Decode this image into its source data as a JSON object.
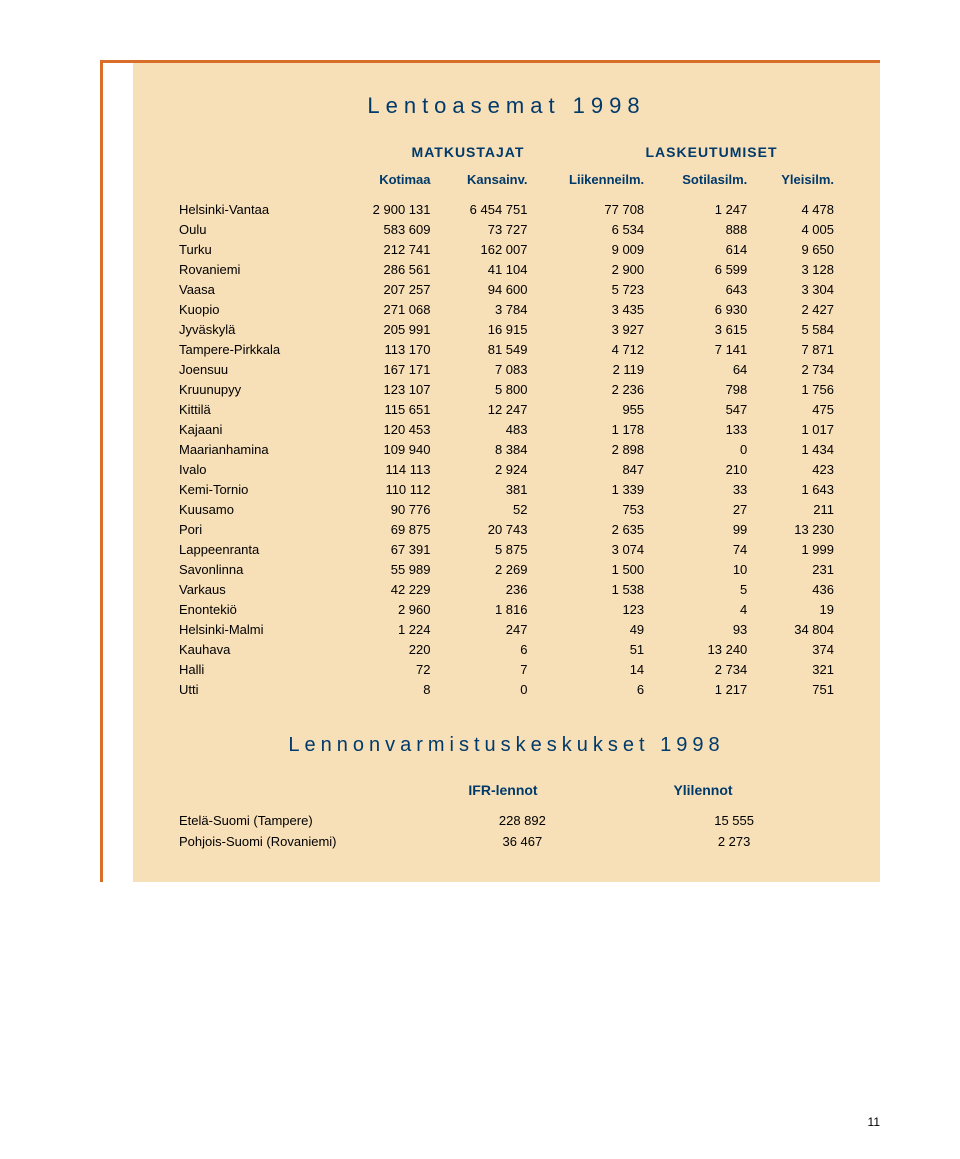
{
  "title1": "Lentoasemat 1998",
  "group_headers": {
    "passengers": "MATKUSTAJAT",
    "landings": "LASKEUTUMISET"
  },
  "columns": [
    "Kotimaa",
    "Kansainv.",
    "Liikenneilm.",
    "Sotilasilm.",
    "Yleisilm."
  ],
  "rows": [
    {
      "n": "Helsinki-Vantaa",
      "v": [
        "2 900 131",
        "6 454 751",
        "77 708",
        "1 247",
        "4 478"
      ]
    },
    {
      "n": "Oulu",
      "v": [
        "583 609",
        "73 727",
        "6 534",
        "888",
        "4 005"
      ]
    },
    {
      "n": "Turku",
      "v": [
        "212 741",
        "162 007",
        "9 009",
        "614",
        "9 650"
      ]
    },
    {
      "n": "Rovaniemi",
      "v": [
        "286 561",
        "41 104",
        "2 900",
        "6 599",
        "3 128"
      ]
    },
    {
      "n": "Vaasa",
      "v": [
        "207 257",
        "94 600",
        "5 723",
        "643",
        "3 304"
      ]
    },
    {
      "n": "Kuopio",
      "v": [
        "271 068",
        "3 784",
        "3 435",
        "6 930",
        "2 427"
      ]
    },
    {
      "n": "Jyväskylä",
      "v": [
        "205 991",
        "16 915",
        "3 927",
        "3 615",
        "5 584"
      ]
    },
    {
      "n": "Tampere-Pirkkala",
      "v": [
        "113 170",
        "81 549",
        "4 712",
        "7 141",
        "7 871"
      ]
    },
    {
      "n": "Joensuu",
      "v": [
        "167 171",
        "7 083",
        "2 119",
        "64",
        "2 734"
      ]
    },
    {
      "n": "Kruunupyy",
      "v": [
        "123 107",
        "5 800",
        "2 236",
        "798",
        "1 756"
      ]
    },
    {
      "n": "Kittilä",
      "v": [
        "115 651",
        "12 247",
        "955",
        "547",
        "475"
      ]
    },
    {
      "n": "Kajaani",
      "v": [
        "120 453",
        "483",
        "1 178",
        "133",
        "1 017"
      ]
    },
    {
      "n": "Maarianhamina",
      "v": [
        "109 940",
        "8 384",
        "2 898",
        "0",
        "1 434"
      ]
    },
    {
      "n": "Ivalo",
      "v": [
        "114 113",
        "2 924",
        "847",
        "210",
        "423"
      ]
    },
    {
      "n": "Kemi-Tornio",
      "v": [
        "110 112",
        "381",
        "1 339",
        "33",
        "1 643"
      ]
    },
    {
      "n": "Kuusamo",
      "v": [
        "90 776",
        "52",
        "753",
        "27",
        "211"
      ]
    },
    {
      "n": "Pori",
      "v": [
        "69 875",
        "20 743",
        "2 635",
        "99",
        "13 230"
      ]
    },
    {
      "n": "Lappeenranta",
      "v": [
        "67 391",
        "5 875",
        "3 074",
        "74",
        "1 999"
      ]
    },
    {
      "n": "Savonlinna",
      "v": [
        "55 989",
        "2 269",
        "1 500",
        "10",
        "231"
      ]
    },
    {
      "n": "Varkaus",
      "v": [
        "42 229",
        "236",
        "1 538",
        "5",
        "436"
      ]
    },
    {
      "n": "Enontekiö",
      "v": [
        "2 960",
        "1 816",
        "123",
        "4",
        "19"
      ]
    },
    {
      "n": "Helsinki-Malmi",
      "v": [
        "1 224",
        "247",
        "49",
        "93",
        "34 804"
      ]
    },
    {
      "n": "Kauhava",
      "v": [
        "220",
        "6",
        "51",
        "13 240",
        "374"
      ]
    },
    {
      "n": "Halli",
      "v": [
        "72",
        "7",
        "14",
        "2 734",
        "321"
      ]
    },
    {
      "n": "Utti",
      "v": [
        "8",
        "0",
        "6",
        "1 217",
        "751"
      ]
    }
  ],
  "title2": "Lennonvarmistuskeskukset 1998",
  "columns2": [
    "IFR-lennot",
    "Ylilennot"
  ],
  "rows2": [
    {
      "n": "Etelä-Suomi (Tampere)",
      "v": [
        "228 892",
        "15 555"
      ]
    },
    {
      "n": "Pohjois-Suomi (Rovaniemi)",
      "v": [
        "36 467",
        "2 273"
      ]
    }
  ],
  "page_number": "11"
}
